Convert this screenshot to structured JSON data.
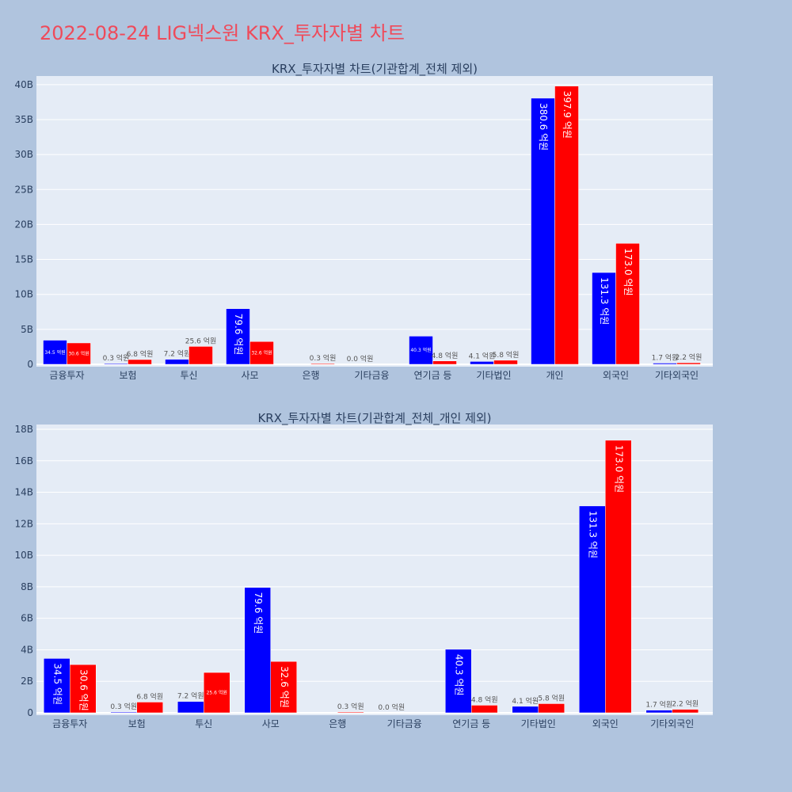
{
  "page": {
    "title": "2022-08-24 LIG넥스원 KRX_투자자별 차트",
    "title_color": "#ef4a5a",
    "background": "#b0c4de"
  },
  "chart_data": [
    {
      "type": "bar",
      "title": "KRX_투자자별 차트(기관합계_전체 제외)",
      "categories": [
        "금융투자",
        "보험",
        "투신",
        "사모",
        "은행",
        "기타금융",
        "연기금 등",
        "기타법인",
        "개인",
        "외국인",
        "기타외국인"
      ],
      "yticks": [
        "0",
        "5B",
        "10B",
        "15B",
        "20B",
        "25B",
        "30B",
        "35B",
        "40B"
      ],
      "ylim": [
        0,
        41000000000
      ],
      "series": [
        {
          "color": "#0000ff",
          "values": [
            3450000000,
            30000000,
            720000000,
            7960000000,
            0,
            0,
            4030000000,
            410000000,
            38060000000,
            13130000000,
            170000000
          ],
          "labels": [
            "34.5 억원",
            "0.3 억원",
            "7.2 억원",
            "79.6 억원",
            "",
            "0.0 억원",
            "40.3 억원",
            "4.1 억원",
            "380.6 억원",
            "131.3 억원",
            "1.7 억원"
          ]
        },
        {
          "color": "#ff0000",
          "values": [
            3060000000,
            680000000,
            2560000000,
            3260000000,
            30000000,
            0,
            480000000,
            580000000,
            39790000000,
            17300000000,
            220000000
          ],
          "labels": [
            "30.6 억원",
            "6.8 억원",
            "25.6 억원",
            "32.6 억원",
            "0.3 억원",
            "",
            "4.8 억원",
            "5.8 억원",
            "397.9 억원",
            "173.0 억원",
            "2.2 억원"
          ]
        }
      ],
      "grid": true,
      "plot_background": "#e5ecf6"
    },
    {
      "type": "bar",
      "title": "KRX_투자자별 차트(기관합계_전체_개인 제외)",
      "categories": [
        "금융투자",
        "보험",
        "투신",
        "사모",
        "은행",
        "기타금융",
        "연기금 등",
        "기타법인",
        "외국인",
        "기타외국인"
      ],
      "yticks": [
        "0",
        "2B",
        "4B",
        "6B",
        "8B",
        "10B",
        "12B",
        "14B",
        "16B",
        "18B"
      ],
      "ylim": [
        0,
        18200000000
      ],
      "series": [
        {
          "color": "#0000ff",
          "values": [
            3450000000,
            30000000,
            720000000,
            7960000000,
            0,
            0,
            4030000000,
            410000000,
            13130000000,
            170000000
          ],
          "labels": [
            "34.5 억원",
            "0.3 억원",
            "7.2 억원",
            "79.6 억원",
            "",
            "0.0 억원",
            "40.3 억원",
            "4.1 억원",
            "131.3 억원",
            "1.7 억원"
          ]
        },
        {
          "color": "#ff0000",
          "values": [
            3060000000,
            680000000,
            2560000000,
            3260000000,
            30000000,
            0,
            480000000,
            580000000,
            17300000000,
            220000000
          ],
          "labels": [
            "30.6 억원",
            "6.8 억원",
            "25.6 억원",
            "32.6 억원",
            "0.3 억원",
            "",
            "4.8 억원",
            "5.8 억원",
            "173.0 억원",
            "2.2 억원"
          ]
        }
      ],
      "grid": true,
      "plot_background": "#e5ecf6"
    }
  ]
}
